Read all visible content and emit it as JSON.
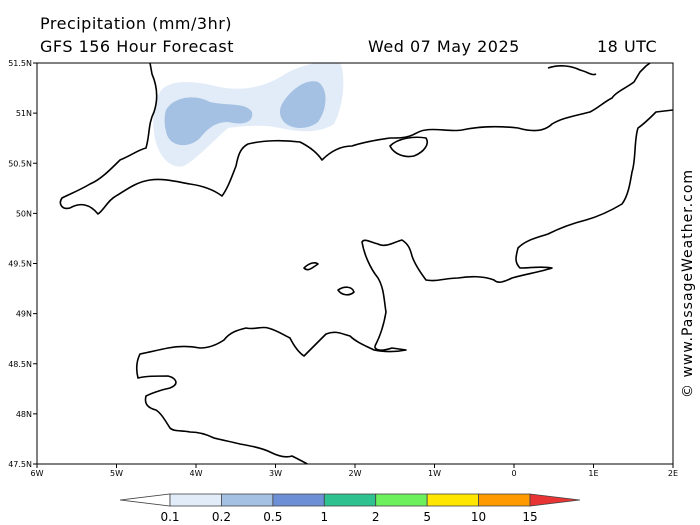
{
  "header": {
    "title": "Precipitation (mm/3hr)",
    "subtitle": "GFS 156 Hour Forecast",
    "date": "Wed 07 May 2025",
    "time": "18 UTC"
  },
  "credit": "© www.PassageWeather.com",
  "map": {
    "lon_range": [
      -6,
      2
    ],
    "lat_range": [
      47.5,
      51.5
    ],
    "lat_ticks": [
      "51.5N",
      "51N",
      "50.5N",
      "50N",
      "49.5N",
      "49N",
      "48.5N",
      "48N",
      "47.5N"
    ],
    "lon_ticks": [
      "6W",
      "5W",
      "4W",
      "3W",
      "2W",
      "1W",
      "0",
      "1E",
      "2E"
    ],
    "coast_color": "#000000",
    "precip_light_color": "#e2ecf8",
    "precip_medium_color": "#a4c0e2"
  },
  "legend": {
    "labels": [
      "0.1",
      "0.2",
      "0.5",
      "1",
      "2",
      "5",
      "10",
      "15"
    ],
    "colors": [
      "#ffffff",
      "#e2ecf8",
      "#a4c0e2",
      "#6c8fd6",
      "#2fc18f",
      "#6cf05c",
      "#ffe600",
      "#ff9a00",
      "#e83434"
    ]
  }
}
